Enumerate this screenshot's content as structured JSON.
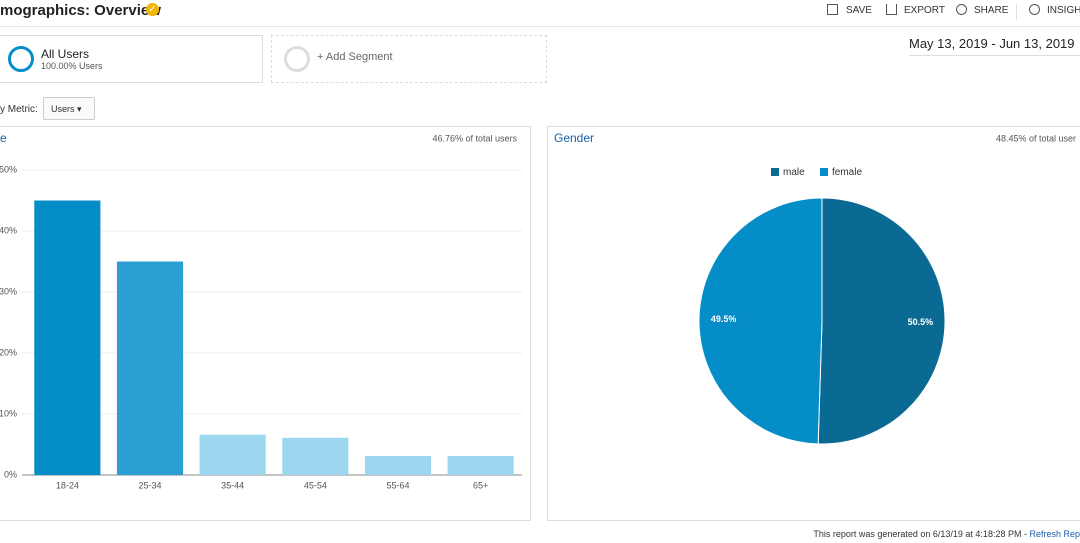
{
  "header": {
    "title": "mographics: Overview",
    "actions": [
      "SAVE",
      "EXPORT",
      "SHARE",
      "INSIGHT"
    ]
  },
  "segments": [
    {
      "name": "All Users",
      "detail": "100.00% Users"
    },
    {
      "name": "+ Add Segment"
    }
  ],
  "date_range": "May 13, 2019 - Jun 13, 2019",
  "metric": {
    "label": "y Metric:",
    "value": "Users"
  },
  "chart_data": [
    {
      "type": "bar",
      "title": "e",
      "subtitle": "46.76% of total users",
      "categories": [
        "18-24",
        "25-34",
        "35-44",
        "45-54",
        "55-64",
        "65+"
      ],
      "values": [
        45,
        35,
        6.6,
        6.1,
        3.1,
        3.1
      ],
      "colors": [
        "#058dc7",
        "#2b9fd3",
        "#9cd7ef",
        "#9cd7ef",
        "#9cd7ef",
        "#9cd7ef"
      ],
      "ylim": [
        0,
        50
      ],
      "yticks": [
        {
          "value": 0,
          "label": "0%"
        },
        {
          "value": 10,
          "label": "10%"
        },
        {
          "value": 20,
          "label": "20%"
        },
        {
          "value": 30,
          "label": "30%"
        },
        {
          "value": 40,
          "label": "40%"
        },
        {
          "value": 50,
          "label": "50%"
        }
      ],
      "grid": true
    },
    {
      "type": "pie",
      "title": "Gender",
      "subtitle": "48.45% of total user",
      "categories": [
        "male",
        "female"
      ],
      "values": [
        50.5,
        49.5
      ],
      "value_labels": [
        "50.5%",
        "49.5%"
      ],
      "colors": [
        "#0b6a94",
        "#058dc7"
      ],
      "legend": "top"
    }
  ],
  "footer": {
    "text": "This report was generated on 6/13/19 at 4:18:28 PM - ",
    "link": "Refresh Rep"
  }
}
